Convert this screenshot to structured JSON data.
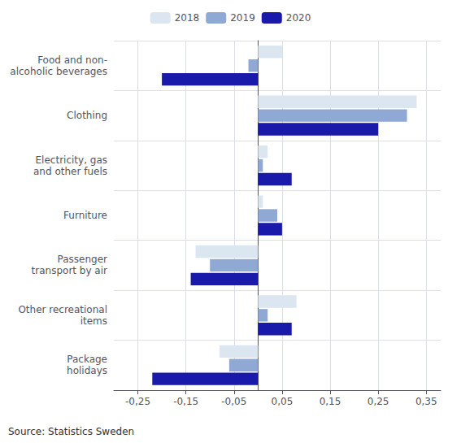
{
  "chart_data": {
    "type": "bar",
    "orientation": "horizontal",
    "categories": [
      "Food and non-\nalcoholic beverages",
      "Clothing",
      "Electricity, gas\nand other fuels",
      "Furniture",
      "Passenger\ntransport by air",
      "Other recreational\nitems",
      "Package\nholidays"
    ],
    "series": [
      {
        "name": "2018",
        "color": "#dce6f1",
        "values": [
          0.05,
          0.33,
          0.02,
          0.01,
          -0.13,
          0.08,
          -0.08
        ]
      },
      {
        "name": "2019",
        "color": "#8fa9d4",
        "values": [
          -0.02,
          0.31,
          0.01,
          0.04,
          -0.1,
          0.02,
          -0.06
        ]
      },
      {
        "name": "2020",
        "color": "#1a1aaa",
        "values": [
          -0.2,
          0.25,
          0.07,
          0.05,
          -0.14,
          0.07,
          -0.22
        ]
      }
    ],
    "xlim": [
      -0.3,
      0.38
    ],
    "xticks": [
      {
        "value": -0.25,
        "label": "-0,25"
      },
      {
        "value": -0.15,
        "label": "-0,15"
      },
      {
        "value": -0.05,
        "label": "-0,05"
      },
      {
        "value": 0.05,
        "label": "0,05"
      },
      {
        "value": 0.15,
        "label": "0,15"
      },
      {
        "value": 0.25,
        "label": "0,25"
      },
      {
        "value": 0.35,
        "label": "0,35"
      }
    ],
    "grid": true,
    "legend": "top",
    "annotations": [
      "Source: Statistics Sweden"
    ]
  }
}
